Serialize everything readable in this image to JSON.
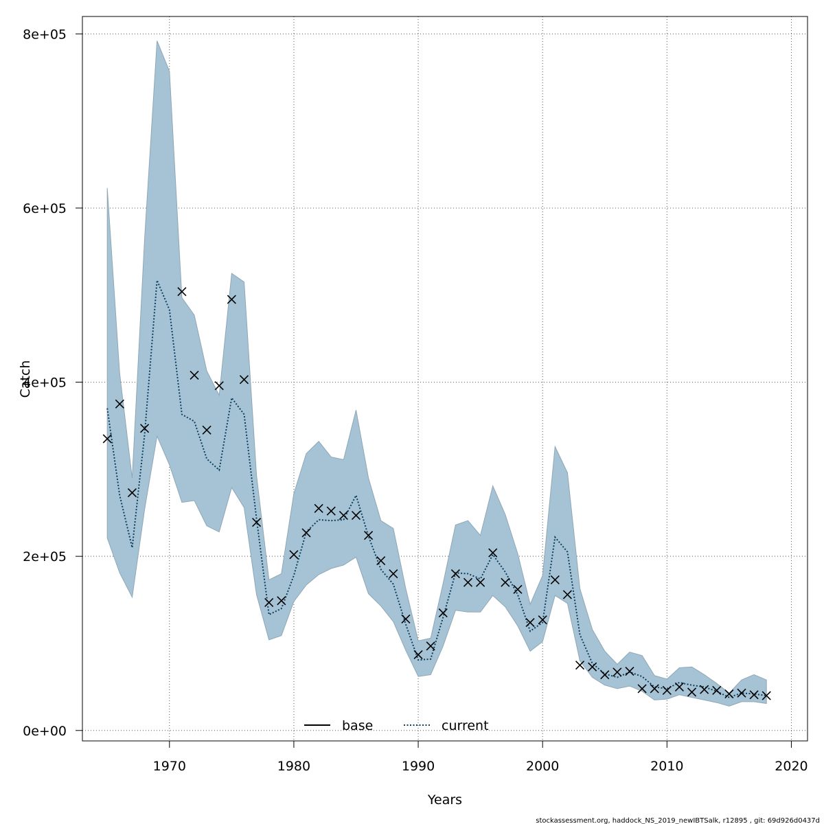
{
  "chart_data": {
    "type": "line",
    "xlabel": "Years",
    "ylabel": "Catch",
    "xlim": [
      1963,
      2021.3
    ],
    "ylim": [
      -12000,
      820000
    ],
    "x_ticks": [
      1970,
      1980,
      1990,
      2000,
      2010,
      2020
    ],
    "x_tick_labels": [
      "1970",
      "1980",
      "1990",
      "2000",
      "2010",
      "2020"
    ],
    "y_ticks": [
      0,
      200000,
      400000,
      600000,
      800000
    ],
    "y_tick_labels": [
      "0e+00",
      "2e+05",
      "4e+05",
      "6e+05",
      "8e+05"
    ],
    "grid": true,
    "years": [
      1965,
      1966,
      1967,
      1968,
      1969,
      1970,
      1971,
      1972,
      1973,
      1974,
      1975,
      1976,
      1977,
      1978,
      1979,
      1980,
      1981,
      1982,
      1983,
      1984,
      1985,
      1986,
      1987,
      1988,
      1989,
      1990,
      1991,
      1992,
      1993,
      1994,
      1995,
      1996,
      1997,
      1998,
      1999,
      2000,
      2001,
      2002,
      2003,
      2004,
      2005,
      2006,
      2007,
      2008,
      2009,
      2010,
      2011,
      2012,
      2013,
      2014,
      2015,
      2016,
      2017,
      2018
    ],
    "observed": [
      335000,
      375000,
      273000,
      347000,
      null,
      null,
      504000,
      408000,
      345000,
      396000,
      495000,
      403000,
      239000,
      147000,
      149000,
      202000,
      227000,
      255000,
      252000,
      247000,
      247000,
      224000,
      195000,
      180000,
      128000,
      87000,
      97000,
      135000,
      180000,
      170000,
      170000,
      204000,
      170000,
      162000,
      124000,
      127000,
      173000,
      156000,
      75000,
      73000,
      64000,
      67000,
      68000,
      48000,
      48000,
      46000,
      50000,
      44000,
      47000,
      46000,
      42000,
      43000,
      41000,
      40000
    ],
    "series": [
      {
        "name": "current",
        "values": [
          370000,
          270000,
          210000,
          340000,
          517000,
          483000,
          363000,
          355000,
          312000,
          299000,
          382000,
          363000,
          243000,
          133000,
          140000,
          178000,
          228000,
          242000,
          241000,
          242000,
          270000,
          223000,
          185000,
          168000,
          122000,
          81000,
          82000,
          130000,
          181000,
          180000,
          174000,
          202000,
          182000,
          156000,
          114000,
          124000,
          222000,
          205000,
          110000,
          77000,
          65000,
          61000,
          67000,
          62000,
          50000,
          48000,
          55000,
          52000,
          50000,
          45000,
          38000,
          43000,
          42000,
          40000
        ]
      },
      {
        "name": "base",
        "values": []
      }
    ],
    "band_upper": [
      623000,
      410000,
      290000,
      565000,
      792000,
      757000,
      497000,
      477000,
      413000,
      385000,
      525000,
      515000,
      293000,
      173000,
      180000,
      272000,
      318000,
      332000,
      314000,
      311000,
      368000,
      290000,
      241000,
      232000,
      163000,
      103000,
      106000,
      169000,
      236000,
      241000,
      224000,
      281000,
      248000,
      203000,
      145000,
      178000,
      326000,
      296000,
      163000,
      116000,
      91000,
      76000,
      90000,
      86000,
      63000,
      59000,
      72000,
      73000,
      64000,
      54000,
      43000,
      58000,
      64000,
      58000
    ],
    "band_lower": [
      221000,
      181000,
      153000,
      254000,
      338000,
      305000,
      262000,
      264000,
      235000,
      228000,
      279000,
      256000,
      156000,
      104000,
      109000,
      148000,
      167000,
      179000,
      186000,
      190000,
      199000,
      157000,
      143000,
      125000,
      92000,
      62000,
      64000,
      97000,
      138000,
      136000,
      136000,
      155000,
      142000,
      120000,
      91000,
      102000,
      155000,
      146000,
      80000,
      61000,
      52000,
      48000,
      51000,
      45000,
      35000,
      36000,
      41000,
      38000,
      35000,
      32000,
      28000,
      33000,
      33000,
      31000
    ],
    "legend": [
      {
        "label": "base",
        "style": "solid"
      },
      {
        "label": "current",
        "style": "dotted"
      }
    ],
    "legend_position": "bottom",
    "colors": {
      "band_fill": "#a5c3d5",
      "band_stroke": "#8fa7b6",
      "current_line": "#0b3d5c",
      "base_line": "#000000"
    },
    "footer": "stockassessment.org, haddock_NS_2019_newIBTSalk, r12895 , git: 69d926d0437d"
  }
}
